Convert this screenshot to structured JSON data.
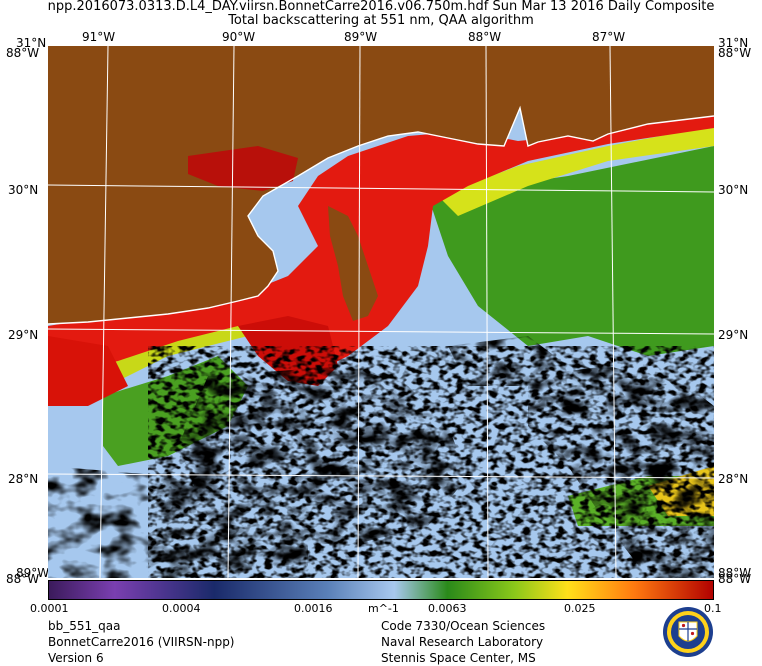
{
  "header": {
    "line1": "npp.2016073.0313.D.L4_DAY.viirsn.BonnetCarre2016.v06.750m.hdf    Sun Mar 13 2016 Daily Composite",
    "line2": "Total backscattering at 551 nm, QAA algorithm"
  },
  "map": {
    "lon_labels": [
      "91°W",
      "90°W",
      "89°W",
      "88°W",
      "87°W"
    ],
    "lat_labels": [
      "31°N",
      "30°N",
      "29°N",
      "28°N"
    ],
    "corner_top_left": "31°N",
    "corner_top_right": "31°N",
    "corner_top_left_lon": "88°W",
    "corner_top_right_lon": "88°W",
    "corner_bottom_left": "88°W",
    "corner_bottom_right": "88°W",
    "corner_bottom_left_lat": "89°W",
    "corner_bottom_right_lat": "88°W",
    "land_color": "#8a4a12",
    "cloud_color": "#000000",
    "water_low_color": "#a6c8ee"
  },
  "colorbar": {
    "min_label": "0.0001",
    "labels": [
      "0.0004",
      "0.0016",
      "m^-1",
      "0.0063",
      "0.025",
      "0.1"
    ]
  },
  "footer_left": {
    "line1": "bb_551_qaa",
    "line2": "BonnetCarre2016 (VIIRSN-npp)",
    "line3": "Version 6"
  },
  "footer_right": {
    "line1": "Code 7330/Ocean Sciences",
    "line2": "Naval Research Laboratory",
    "line3": "Stennis Space Center, MS"
  }
}
